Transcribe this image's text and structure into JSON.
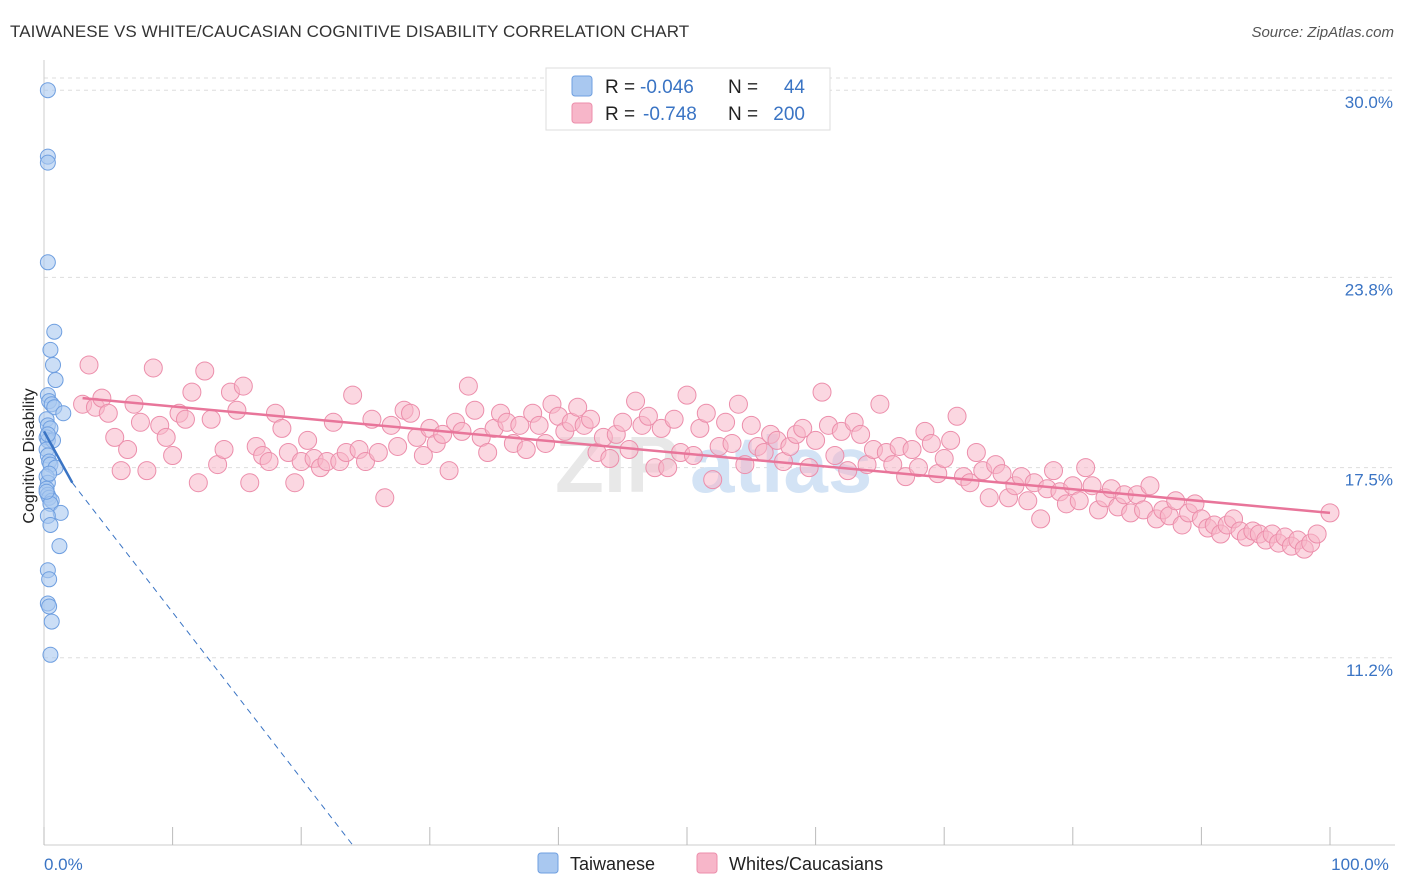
{
  "header": {
    "title": "TAIWANESE VS WHITE/CAUCASIAN COGNITIVE DISABILITY CORRELATION CHART",
    "source": "Source: ZipAtlas.com"
  },
  "watermark": {
    "part1": "ZIP",
    "part2": "atlas"
  },
  "legend": {
    "rows": [
      {
        "r_label": "R =",
        "r_value": "-0.046",
        "n_label": "N =",
        "n_value": "44"
      },
      {
        "r_label": "R =",
        "r_value": "-0.748",
        "n_label": "N =",
        "n_value": "200"
      }
    ]
  },
  "bottom_legend": {
    "items": [
      {
        "label": "Taiwanese"
      },
      {
        "label": "Whites/Caucasians"
      }
    ]
  },
  "colors": {
    "taiwanese_fill": "#a9c8f0",
    "taiwanese_stroke": "#6f9fe0",
    "taiwanese_line": "#3a74c4",
    "white_fill": "#f7b6c9",
    "white_stroke": "#ec8eab",
    "white_line": "#e8759a",
    "axis_text": "#3a74c4",
    "grid": "#dddddd"
  },
  "chart_data": {
    "type": "scatter",
    "title": "TAIWANESE VS WHITE/CAUCASIAN COGNITIVE DISABILITY CORRELATION CHART",
    "xlabel": "",
    "ylabel": "Cognitive Disability",
    "xlim": [
      0,
      100
    ],
    "ylim": [
      5.0,
      31.0
    ],
    "y_ticks": [
      {
        "value": 11.2,
        "label": "11.2%"
      },
      {
        "value": 17.5,
        "label": "17.5%"
      },
      {
        "value": 23.8,
        "label": "23.8%"
      },
      {
        "value": 30.0,
        "label": "30.0%"
      }
    ],
    "x_tick_labels": [
      {
        "value": 0,
        "label": "0.0%"
      },
      {
        "value": 100,
        "label": "100.0%"
      }
    ],
    "x_minor_ticks": [
      0,
      10,
      20,
      30,
      40,
      50,
      60,
      70,
      80,
      90,
      100
    ],
    "series": [
      {
        "name": "Taiwanese",
        "r": -0.046,
        "n": 44,
        "trend_solid": {
          "x": [
            0,
            2.2
          ],
          "y": [
            18.7,
            17.0
          ]
        },
        "trend_dashed": {
          "x": [
            2.2,
            24.0
          ],
          "y": [
            17.0,
            5.0
          ]
        },
        "points": [
          [
            0.3,
            30.0
          ],
          [
            0.3,
            27.8
          ],
          [
            0.3,
            27.6
          ],
          [
            0.3,
            24.3
          ],
          [
            0.8,
            22.0
          ],
          [
            0.5,
            21.4
          ],
          [
            0.7,
            20.9
          ],
          [
            0.9,
            20.4
          ],
          [
            0.3,
            19.9
          ],
          [
            0.4,
            19.7
          ],
          [
            0.6,
            19.6
          ],
          [
            0.8,
            19.5
          ],
          [
            1.5,
            19.3
          ],
          [
            0.2,
            19.1
          ],
          [
            0.3,
            18.9
          ],
          [
            0.5,
            18.8
          ],
          [
            0.2,
            18.5
          ],
          [
            0.3,
            18.4
          ],
          [
            0.7,
            18.4
          ],
          [
            0.2,
            18.1
          ],
          [
            0.3,
            17.9
          ],
          [
            0.4,
            17.7
          ],
          [
            0.5,
            17.6
          ],
          [
            0.9,
            17.5
          ],
          [
            0.2,
            17.2
          ],
          [
            0.3,
            17.0
          ],
          [
            0.2,
            16.8
          ],
          [
            0.3,
            16.6
          ],
          [
            0.4,
            16.5
          ],
          [
            0.6,
            16.4
          ],
          [
            0.5,
            16.3
          ],
          [
            1.3,
            16.0
          ],
          [
            0.3,
            15.9
          ],
          [
            0.5,
            15.6
          ],
          [
            1.2,
            14.9
          ],
          [
            0.3,
            14.1
          ],
          [
            0.4,
            13.8
          ],
          [
            0.3,
            13.0
          ],
          [
            0.4,
            12.9
          ],
          [
            0.6,
            12.4
          ],
          [
            0.5,
            11.3
          ],
          [
            0.3,
            18.6
          ],
          [
            0.4,
            17.3
          ],
          [
            0.2,
            16.7
          ]
        ]
      },
      {
        "name": "Whites/Caucasians",
        "r": -0.748,
        "n": 200,
        "trend": {
          "x": [
            3,
            100
          ],
          "y": [
            19.8,
            16.0
          ]
        },
        "points": [
          [
            3.0,
            19.6
          ],
          [
            3.5,
            20.9
          ],
          [
            4.0,
            19.5
          ],
          [
            4.5,
            19.8
          ],
          [
            5.0,
            19.3
          ],
          [
            5.5,
            18.5
          ],
          [
            6.0,
            17.4
          ],
          [
            6.5,
            18.1
          ],
          [
            7.0,
            19.6
          ],
          [
            7.5,
            19.0
          ],
          [
            8.0,
            17.4
          ],
          [
            8.5,
            20.8
          ],
          [
            9.0,
            18.9
          ],
          [
            9.5,
            18.5
          ],
          [
            10.0,
            17.9
          ],
          [
            10.5,
            19.3
          ],
          [
            11.0,
            19.1
          ],
          [
            11.5,
            20.0
          ],
          [
            12.0,
            17.0
          ],
          [
            12.5,
            20.7
          ],
          [
            13.0,
            19.1
          ],
          [
            13.5,
            17.6
          ],
          [
            14.0,
            18.1
          ],
          [
            14.5,
            20.0
          ],
          [
            15.0,
            19.4
          ],
          [
            15.5,
            20.2
          ],
          [
            16.0,
            17.0
          ],
          [
            16.5,
            18.2
          ],
          [
            17.0,
            17.9
          ],
          [
            17.5,
            17.7
          ],
          [
            18.0,
            19.3
          ],
          [
            18.5,
            18.8
          ],
          [
            19.0,
            18.0
          ],
          [
            19.5,
            17.0
          ],
          [
            20.0,
            17.7
          ],
          [
            20.5,
            18.4
          ],
          [
            21.0,
            17.8
          ],
          [
            21.5,
            17.5
          ],
          [
            22.0,
            17.7
          ],
          [
            22.5,
            19.0
          ],
          [
            23.0,
            17.7
          ],
          [
            23.5,
            18.0
          ],
          [
            24.0,
            19.9
          ],
          [
            24.5,
            18.1
          ],
          [
            25.0,
            17.7
          ],
          [
            25.5,
            19.1
          ],
          [
            26.0,
            18.0
          ],
          [
            26.5,
            16.5
          ],
          [
            27.0,
            18.9
          ],
          [
            27.5,
            18.2
          ],
          [
            28.0,
            19.4
          ],
          [
            28.5,
            19.3
          ],
          [
            29.0,
            18.5
          ],
          [
            29.5,
            17.9
          ],
          [
            30.0,
            18.8
          ],
          [
            30.5,
            18.3
          ],
          [
            31.0,
            18.6
          ],
          [
            31.5,
            17.4
          ],
          [
            32.0,
            19.0
          ],
          [
            32.5,
            18.7
          ],
          [
            33.0,
            20.2
          ],
          [
            33.5,
            19.4
          ],
          [
            34.0,
            18.5
          ],
          [
            34.5,
            18.0
          ],
          [
            35.0,
            18.8
          ],
          [
            35.5,
            19.3
          ],
          [
            36.0,
            19.0
          ],
          [
            36.5,
            18.3
          ],
          [
            37.0,
            18.9
          ],
          [
            37.5,
            18.1
          ],
          [
            38.0,
            19.3
          ],
          [
            38.5,
            18.9
          ],
          [
            39.0,
            18.3
          ],
          [
            39.5,
            19.6
          ],
          [
            40.0,
            19.2
          ],
          [
            40.5,
            18.7
          ],
          [
            41.0,
            19.0
          ],
          [
            41.5,
            19.5
          ],
          [
            42.0,
            18.9
          ],
          [
            42.5,
            19.1
          ],
          [
            43.0,
            18.0
          ],
          [
            43.5,
            18.5
          ],
          [
            44.0,
            17.8
          ],
          [
            44.5,
            18.6
          ],
          [
            45.0,
            19.0
          ],
          [
            45.5,
            18.1
          ],
          [
            46.0,
            19.7
          ],
          [
            46.5,
            18.9
          ],
          [
            47.0,
            19.2
          ],
          [
            47.5,
            17.5
          ],
          [
            48.0,
            18.8
          ],
          [
            48.5,
            17.5
          ],
          [
            49.0,
            19.1
          ],
          [
            49.5,
            18.0
          ],
          [
            50.0,
            19.9
          ],
          [
            50.5,
            17.9
          ],
          [
            51.0,
            18.8
          ],
          [
            51.5,
            19.3
          ],
          [
            52.0,
            17.1
          ],
          [
            52.5,
            18.2
          ],
          [
            53.0,
            19.0
          ],
          [
            53.5,
            18.3
          ],
          [
            54.0,
            19.6
          ],
          [
            54.5,
            17.6
          ],
          [
            55.0,
            18.9
          ],
          [
            55.5,
            18.2
          ],
          [
            56.0,
            18.0
          ],
          [
            56.5,
            18.6
          ],
          [
            57.0,
            18.4
          ],
          [
            57.5,
            17.7
          ],
          [
            58.0,
            18.2
          ],
          [
            58.5,
            18.6
          ],
          [
            59.0,
            18.8
          ],
          [
            59.5,
            17.5
          ],
          [
            60.0,
            18.4
          ],
          [
            60.5,
            20.0
          ],
          [
            61.0,
            18.9
          ],
          [
            61.5,
            17.9
          ],
          [
            62.0,
            18.7
          ],
          [
            62.5,
            17.4
          ],
          [
            63.0,
            19.0
          ],
          [
            63.5,
            18.6
          ],
          [
            64.0,
            17.6
          ],
          [
            64.5,
            18.1
          ],
          [
            65.0,
            19.6
          ],
          [
            65.5,
            18.0
          ],
          [
            66.0,
            17.6
          ],
          [
            66.5,
            18.2
          ],
          [
            67.0,
            17.2
          ],
          [
            67.5,
            18.1
          ],
          [
            68.0,
            17.5
          ],
          [
            68.5,
            18.7
          ],
          [
            69.0,
            18.3
          ],
          [
            69.5,
            17.3
          ],
          [
            70.0,
            17.8
          ],
          [
            70.5,
            18.4
          ],
          [
            71.0,
            19.2
          ],
          [
            71.5,
            17.2
          ],
          [
            72.0,
            17.0
          ],
          [
            72.5,
            18.0
          ],
          [
            73.0,
            17.4
          ],
          [
            73.5,
            16.5
          ],
          [
            74.0,
            17.6
          ],
          [
            74.5,
            17.3
          ],
          [
            75.0,
            16.5
          ],
          [
            75.5,
            16.9
          ],
          [
            76.0,
            17.2
          ],
          [
            76.5,
            16.4
          ],
          [
            77.0,
            17.0
          ],
          [
            77.5,
            15.8
          ],
          [
            78.0,
            16.8
          ],
          [
            78.5,
            17.4
          ],
          [
            79.0,
            16.7
          ],
          [
            79.5,
            16.3
          ],
          [
            80.0,
            16.9
          ],
          [
            80.5,
            16.4
          ],
          [
            81.0,
            17.5
          ],
          [
            81.5,
            16.9
          ],
          [
            82.0,
            16.1
          ],
          [
            82.5,
            16.5
          ],
          [
            83.0,
            16.8
          ],
          [
            83.5,
            16.2
          ],
          [
            84.0,
            16.6
          ],
          [
            84.5,
            16.0
          ],
          [
            85.0,
            16.6
          ],
          [
            85.5,
            16.1
          ],
          [
            86.0,
            16.9
          ],
          [
            86.5,
            15.8
          ],
          [
            87.0,
            16.1
          ],
          [
            87.5,
            15.9
          ],
          [
            88.0,
            16.4
          ],
          [
            88.5,
            15.6
          ],
          [
            89.0,
            16.0
          ],
          [
            89.5,
            16.3
          ],
          [
            90.0,
            15.8
          ],
          [
            90.5,
            15.5
          ],
          [
            91.0,
            15.6
          ],
          [
            91.5,
            15.3
          ],
          [
            92.0,
            15.6
          ],
          [
            92.5,
            15.8
          ],
          [
            93.0,
            15.4
          ],
          [
            93.5,
            15.2
          ],
          [
            94.0,
            15.4
          ],
          [
            94.5,
            15.3
          ],
          [
            95.0,
            15.1
          ],
          [
            95.5,
            15.3
          ],
          [
            96.0,
            15.0
          ],
          [
            96.5,
            15.2
          ],
          [
            97.0,
            14.9
          ],
          [
            97.5,
            15.1
          ],
          [
            98.0,
            14.8
          ],
          [
            98.5,
            15.0
          ],
          [
            99.0,
            15.3
          ],
          [
            100.0,
            16.0
          ]
        ]
      }
    ]
  }
}
